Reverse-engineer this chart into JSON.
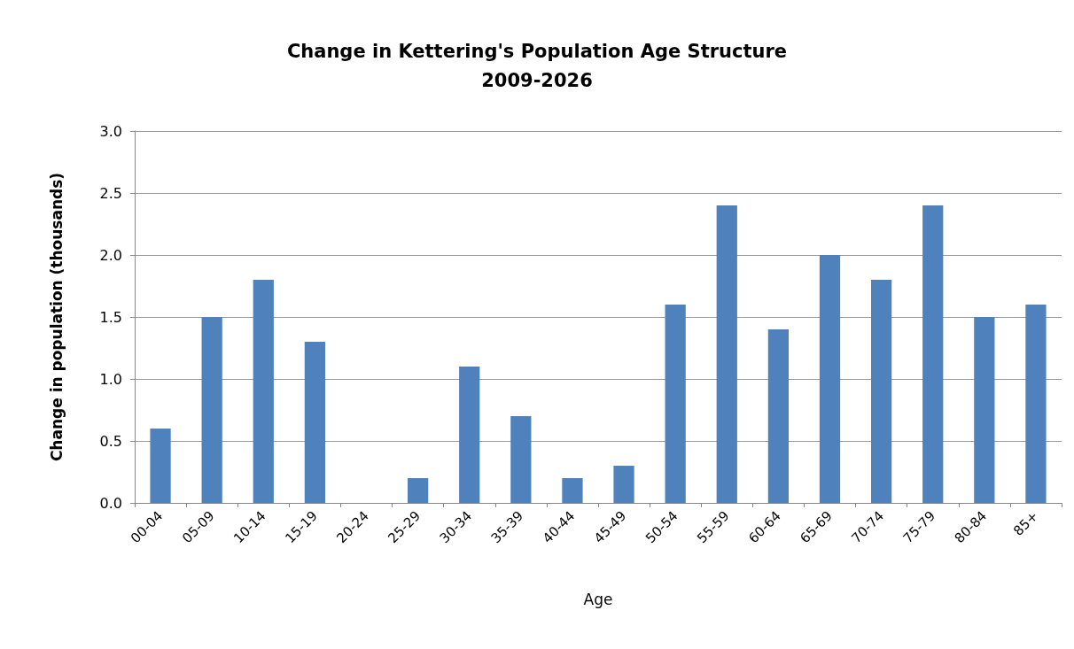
{
  "chart_data": {
    "type": "bar",
    "title": "Change in Kettering's Population Age Structure",
    "subtitle": "2009-2026",
    "xlabel": "Age",
    "ylabel": "Change in population (thousands)",
    "categories": [
      "00-04",
      "05-09",
      "10-14",
      "15-19",
      "20-24",
      "25-29",
      "30-34",
      "35-39",
      "40-44",
      "45-49",
      "50-54",
      "55-59",
      "60-64",
      "65-69",
      "70-74",
      "75-79",
      "80-84",
      "85+"
    ],
    "values": [
      0.6,
      1.5,
      1.8,
      1.3,
      0,
      0.2,
      1.1,
      0.7,
      0.2,
      0.3,
      1.6,
      2.4,
      1.4,
      2.0,
      1.8,
      2.4,
      1.5,
      1.6
    ],
    "color": "#4f81bd",
    "ylim": [
      0,
      3
    ],
    "yticks": [
      {
        "value": 0,
        "label": "0.0"
      },
      {
        "value": 0.5,
        "label": "0.5"
      },
      {
        "value": 1,
        "label": "1.0"
      },
      {
        "value": 1.5,
        "label": "1.5"
      },
      {
        "value": 2,
        "label": "2.0"
      },
      {
        "value": 2.5,
        "label": "2.5"
      },
      {
        "value": 3,
        "label": "3.0"
      }
    ],
    "grid": "y"
  }
}
